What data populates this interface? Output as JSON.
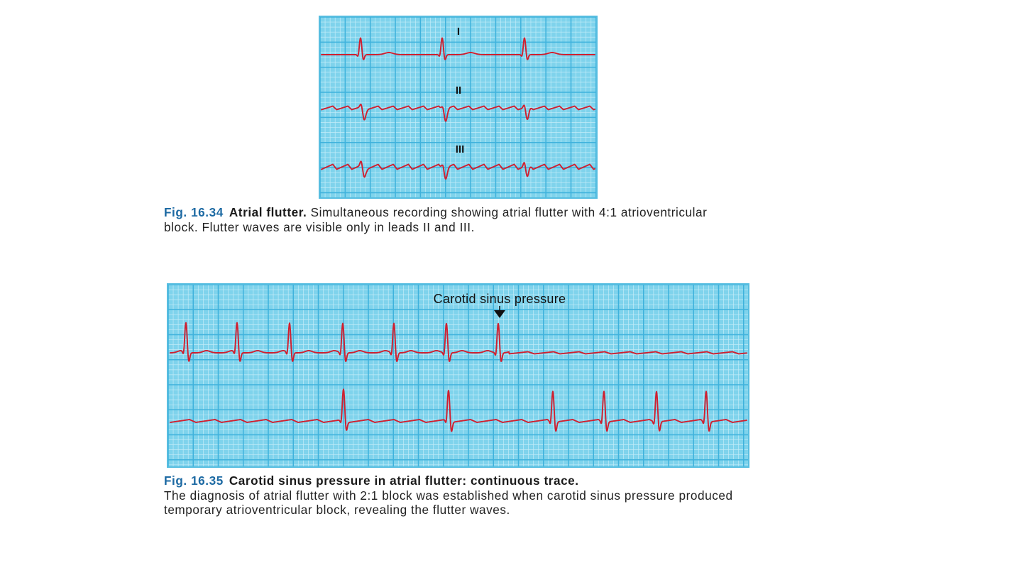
{
  "figures": [
    {
      "number": "Fig. 16.34",
      "title": "Atrial flutter.",
      "caption": "Simultaneous recording showing atrial flutter with 4:1 atrioventricular block. Flutter waves are visible only in leads II and III.",
      "lead_labels": [
        "I",
        "II",
        "III"
      ]
    },
    {
      "number": "Fig. 16.35",
      "title": "Carotid sinus pressure in atrial flutter: continuous trace.",
      "caption": "The diagnosis of atrial flutter with 2:1 block was established when carotid sinus pressure produced temporary atrioventricular block, revealing the flutter waves.",
      "annotation": "Carotid sinus pressure"
    }
  ],
  "colors": {
    "grid_background": "#7fd3ec",
    "grid_minor": "#c3ecf8",
    "grid_major": "#3fb2dc",
    "trace": "#d01f2f",
    "figure_number": "#1d6aa3"
  }
}
